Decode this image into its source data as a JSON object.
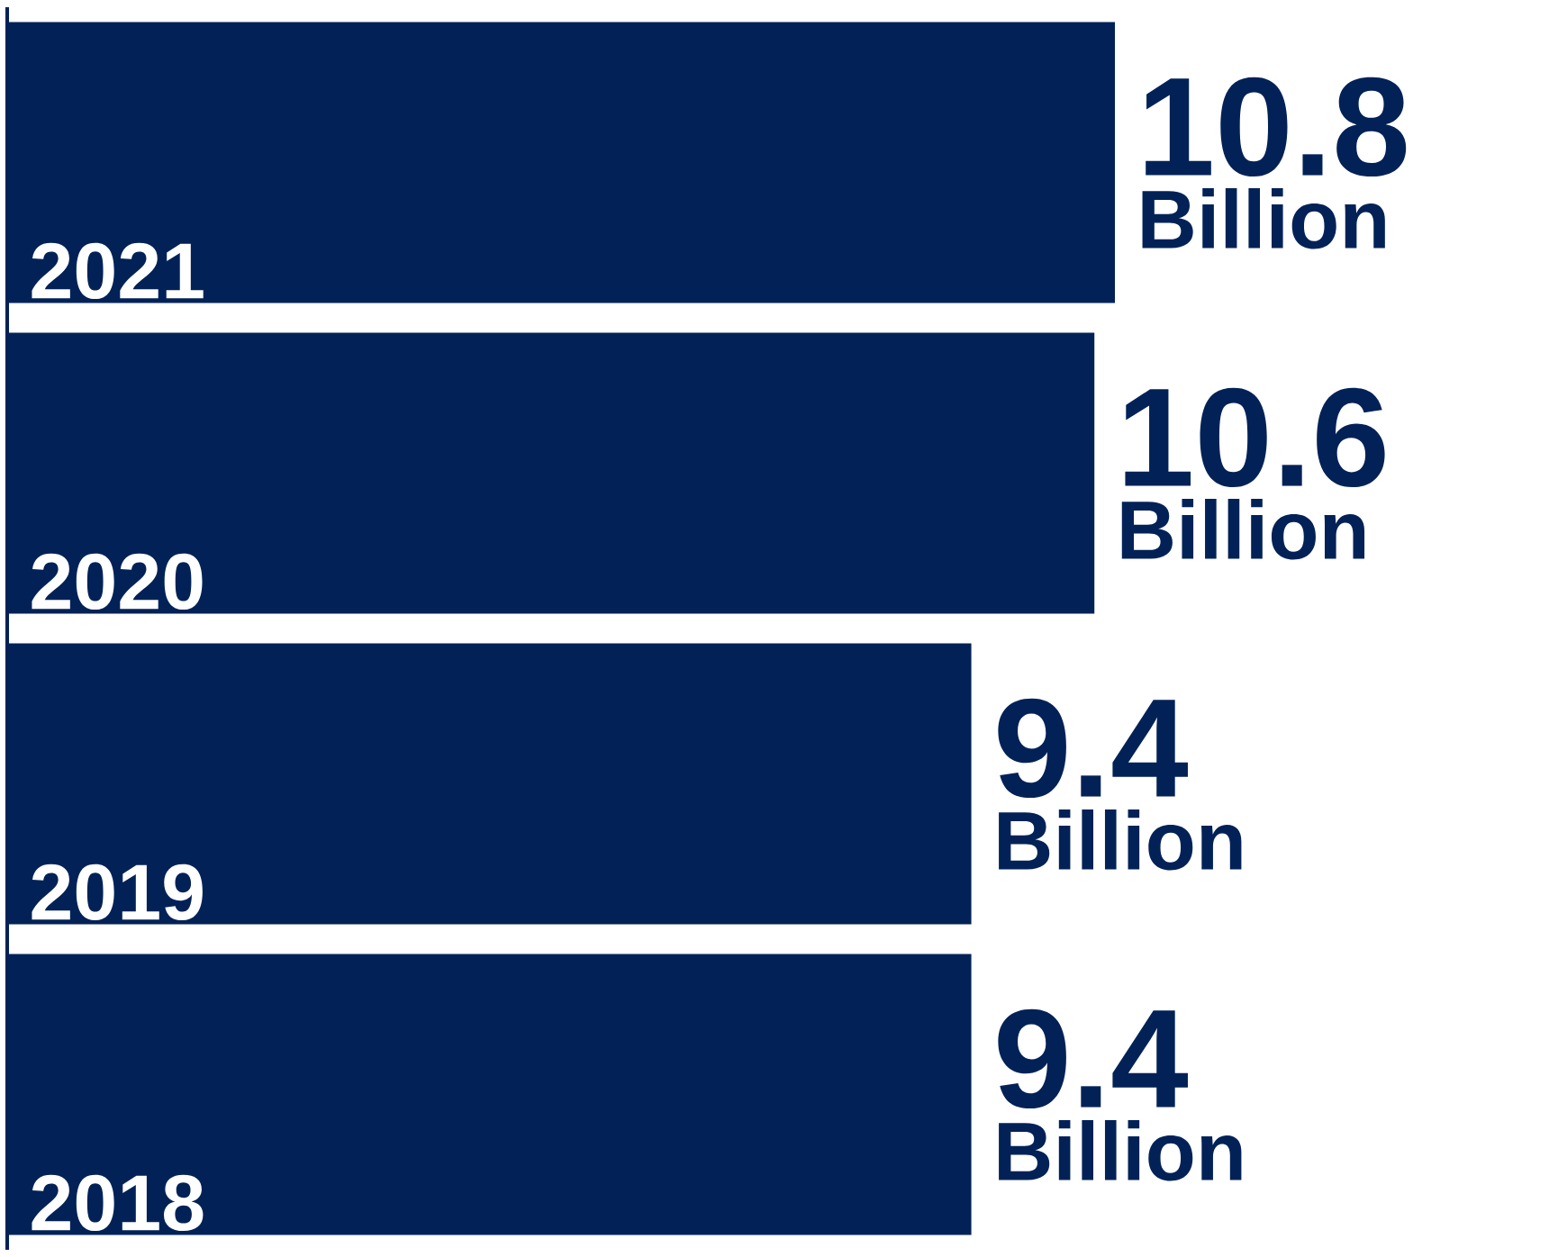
{
  "chart_data": {
    "type": "bar",
    "orientation": "horizontal",
    "categories": [
      "2021",
      "2020",
      "2019",
      "2018"
    ],
    "values": [
      10.8,
      10.6,
      9.4,
      9.4
    ],
    "color": "#022257",
    "tick_labels": "y",
    "data_labels": true,
    "annotations": [
      {
        "text": "Billion",
        "x": 10.8,
        "y": "2021"
      },
      {
        "text": "Billion",
        "x": 10.6,
        "y": "2020"
      },
      {
        "text": "Billion",
        "x": 9.4,
        "y": "2019"
      },
      {
        "text": "Billion",
        "x": 9.4,
        "y": "2018"
      }
    ]
  }
}
